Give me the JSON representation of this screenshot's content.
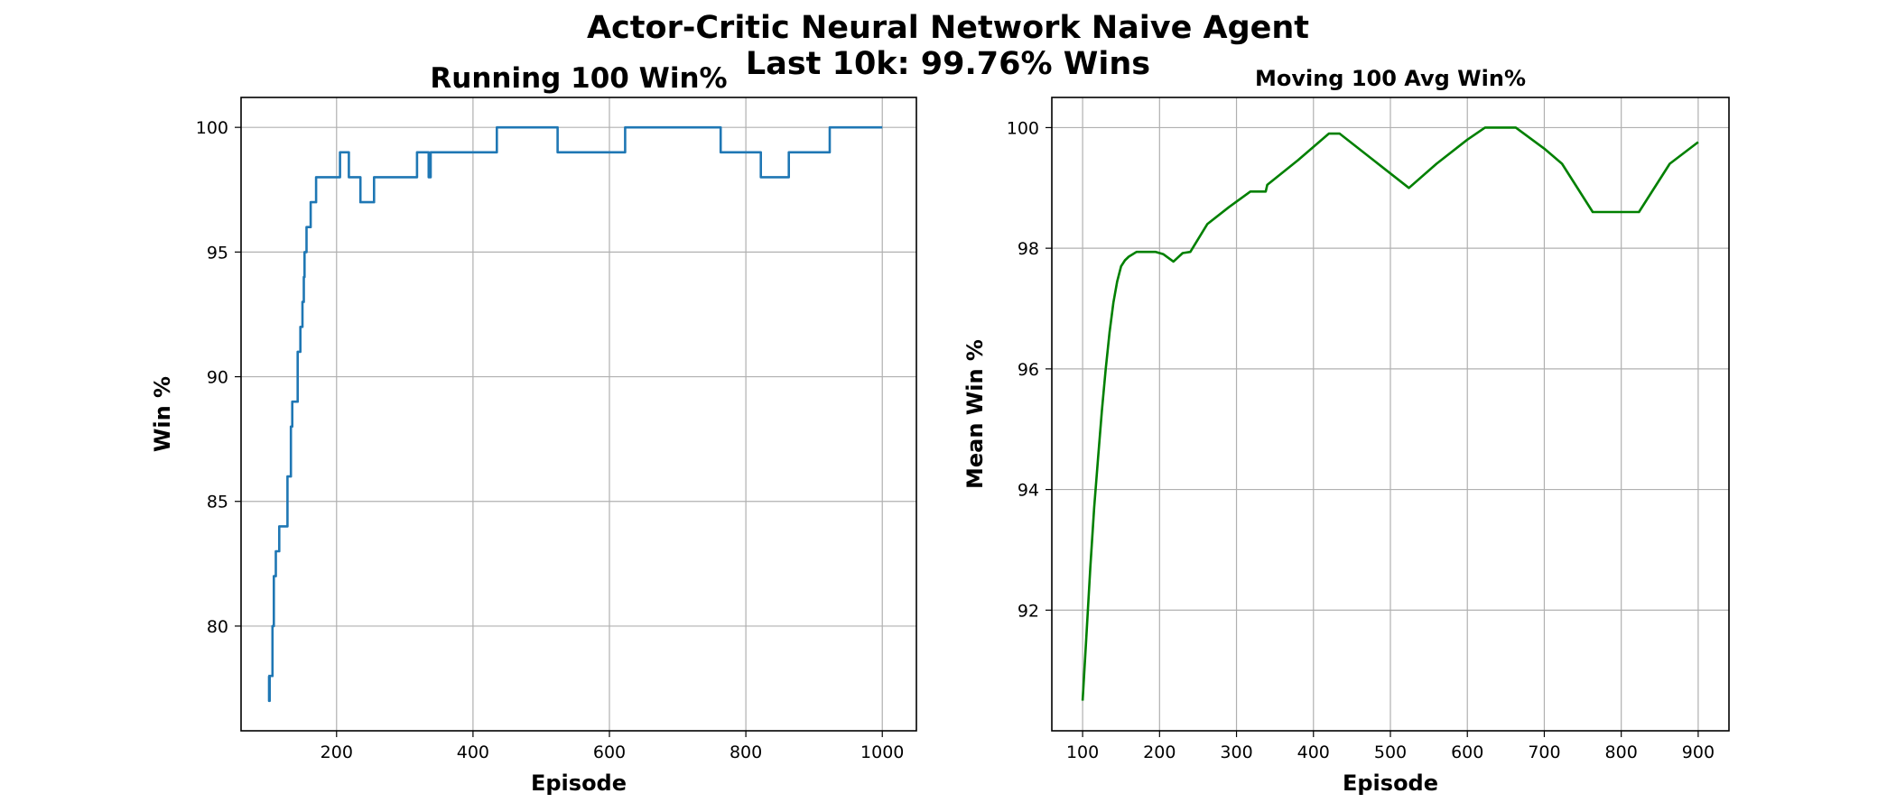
{
  "figure": {
    "suptitle": "Actor-Critic Neural Network Naive Agent\nLast 10k: 99.76% Wins"
  },
  "chart_data": [
    {
      "type": "line",
      "title": "Running 100 Win%",
      "xlabel": "Episode",
      "ylabel": "Win %",
      "xlim": [
        60,
        1050
      ],
      "ylim": [
        75.8,
        101.2
      ],
      "xticks": [
        200,
        400,
        600,
        800,
        1000
      ],
      "yticks": [
        80,
        85,
        90,
        95,
        100
      ],
      "grid": true,
      "step": true,
      "series": [
        {
          "color": "#1f77b4",
          "x": [
            100,
            101,
            102,
            105,
            106,
            108,
            110,
            111,
            115,
            116,
            120,
            122,
            128,
            130,
            133,
            134,
            135,
            137,
            140,
            143,
            145,
            147,
            150,
            152,
            153,
            155,
            156,
            158,
            160,
            162,
            165,
            168,
            170,
            173,
            185,
            195,
            205,
            218,
            235,
            255,
            265,
            290,
            310,
            318,
            325,
            335,
            338,
            342,
            360,
            400,
            435,
            470,
            500,
            524,
            560,
            600,
            623,
            660,
            720,
            763,
            800,
            822,
            840,
            863,
            890,
            923,
            960,
            1000
          ],
          "y": [
            78,
            77,
            78,
            78,
            80,
            82,
            82,
            83,
            83,
            84,
            84,
            84,
            86,
            86,
            88,
            88,
            89,
            89,
            89,
            91,
            91,
            92,
            93,
            94,
            95,
            95,
            96,
            96,
            96,
            97,
            97,
            97,
            98,
            98,
            98,
            98,
            99,
            98,
            97,
            98,
            98,
            98,
            98,
            99,
            99,
            98,
            99,
            99,
            99,
            99,
            100,
            100,
            100,
            99,
            99,
            99,
            100,
            100,
            100,
            99,
            99,
            98,
            98,
            99,
            99,
            100,
            100,
            100
          ]
        }
      ]
    },
    {
      "type": "line",
      "title": "Moving 100 Avg Win%",
      "xlabel": "Episode",
      "ylabel": "Mean Win %",
      "xlim": [
        60,
        940
      ],
      "ylim": [
        90.0,
        100.5
      ],
      "xticks": [
        100,
        200,
        300,
        400,
        500,
        600,
        700,
        800,
        900
      ],
      "yticks": [
        92,
        94,
        96,
        98,
        100
      ],
      "grid": true,
      "step": false,
      "series": [
        {
          "color": "#008000",
          "x": [
            100,
            105,
            110,
            115,
            120,
            125,
            130,
            135,
            140,
            145,
            150,
            155,
            160,
            170,
            180,
            195,
            205,
            218,
            230,
            240,
            262,
            290,
            318,
            338,
            340,
            380,
            420,
            434,
            480,
            524,
            560,
            600,
            623,
            663,
            700,
            723,
            763,
            780,
            800,
            823,
            863,
            900
          ],
          "y": [
            90.5,
            91.6,
            92.7,
            93.7,
            94.5,
            95.3,
            96.0,
            96.6,
            97.1,
            97.45,
            97.7,
            97.8,
            97.86,
            97.94,
            97.94,
            97.94,
            97.9,
            97.78,
            97.92,
            97.94,
            98.4,
            98.68,
            98.94,
            98.94,
            99.05,
            99.46,
            99.9,
            99.9,
            99.44,
            99.0,
            99.4,
            99.8,
            100.0,
            100.0,
            99.65,
            99.4,
            98.6,
            98.6,
            98.6,
            98.6,
            99.4,
            99.76
          ]
        }
      ]
    }
  ]
}
